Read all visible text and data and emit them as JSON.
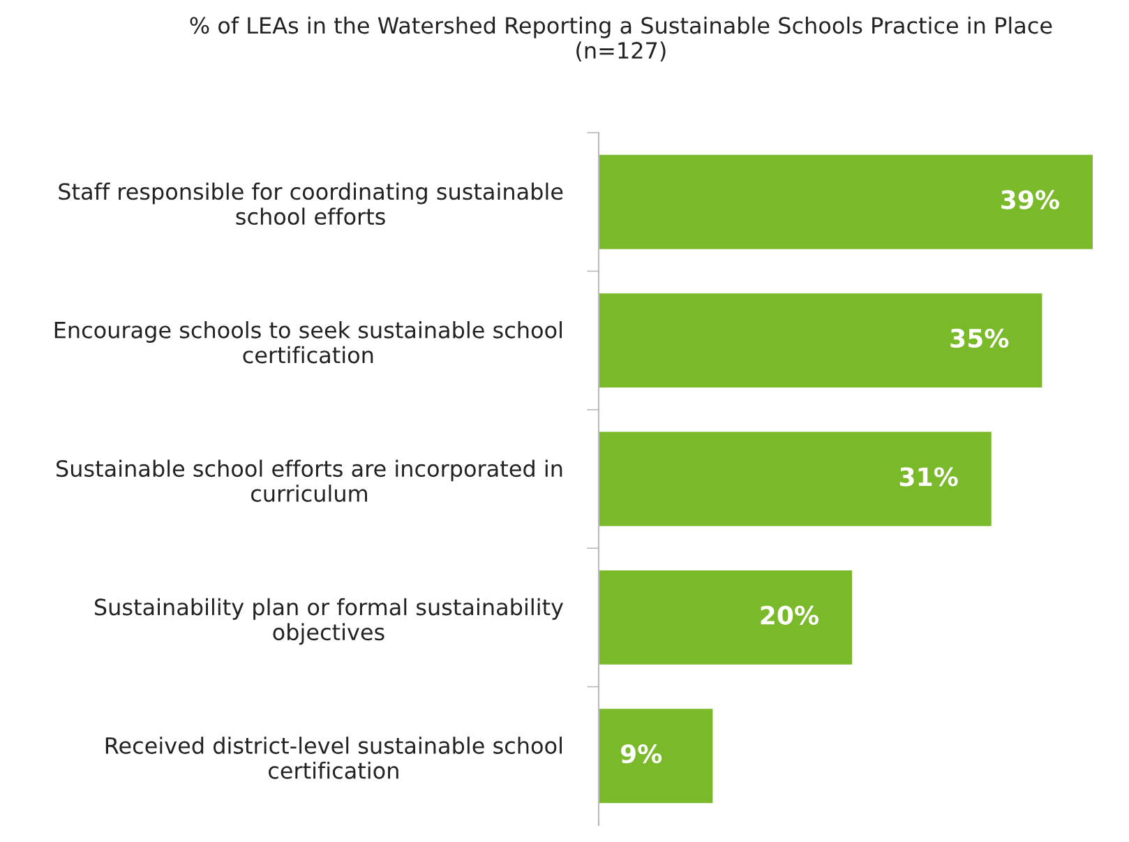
{
  "chart_data": {
    "type": "bar",
    "orientation": "horizontal",
    "title": "% of LEAs in the Watershed Reporting a Sustainable Schools Practice in Place\n(n=127)",
    "categories": [
      "Staff responsible for coordinating sustainable\nschool efforts",
      "Encourage schools to seek sustainable school\ncertification",
      "Sustainable school efforts are incorporated in\ncurriculum",
      "Sustainability plan or formal sustainability\nobjectives",
      "Received district-level sustainable school\ncertification"
    ],
    "values": [
      39,
      35,
      31,
      20,
      9
    ],
    "value_labels": [
      "39%",
      "35%",
      "31%",
      "20%",
      "9%"
    ],
    "color": "#7ab929",
    "grid": false,
    "legend": false
  }
}
